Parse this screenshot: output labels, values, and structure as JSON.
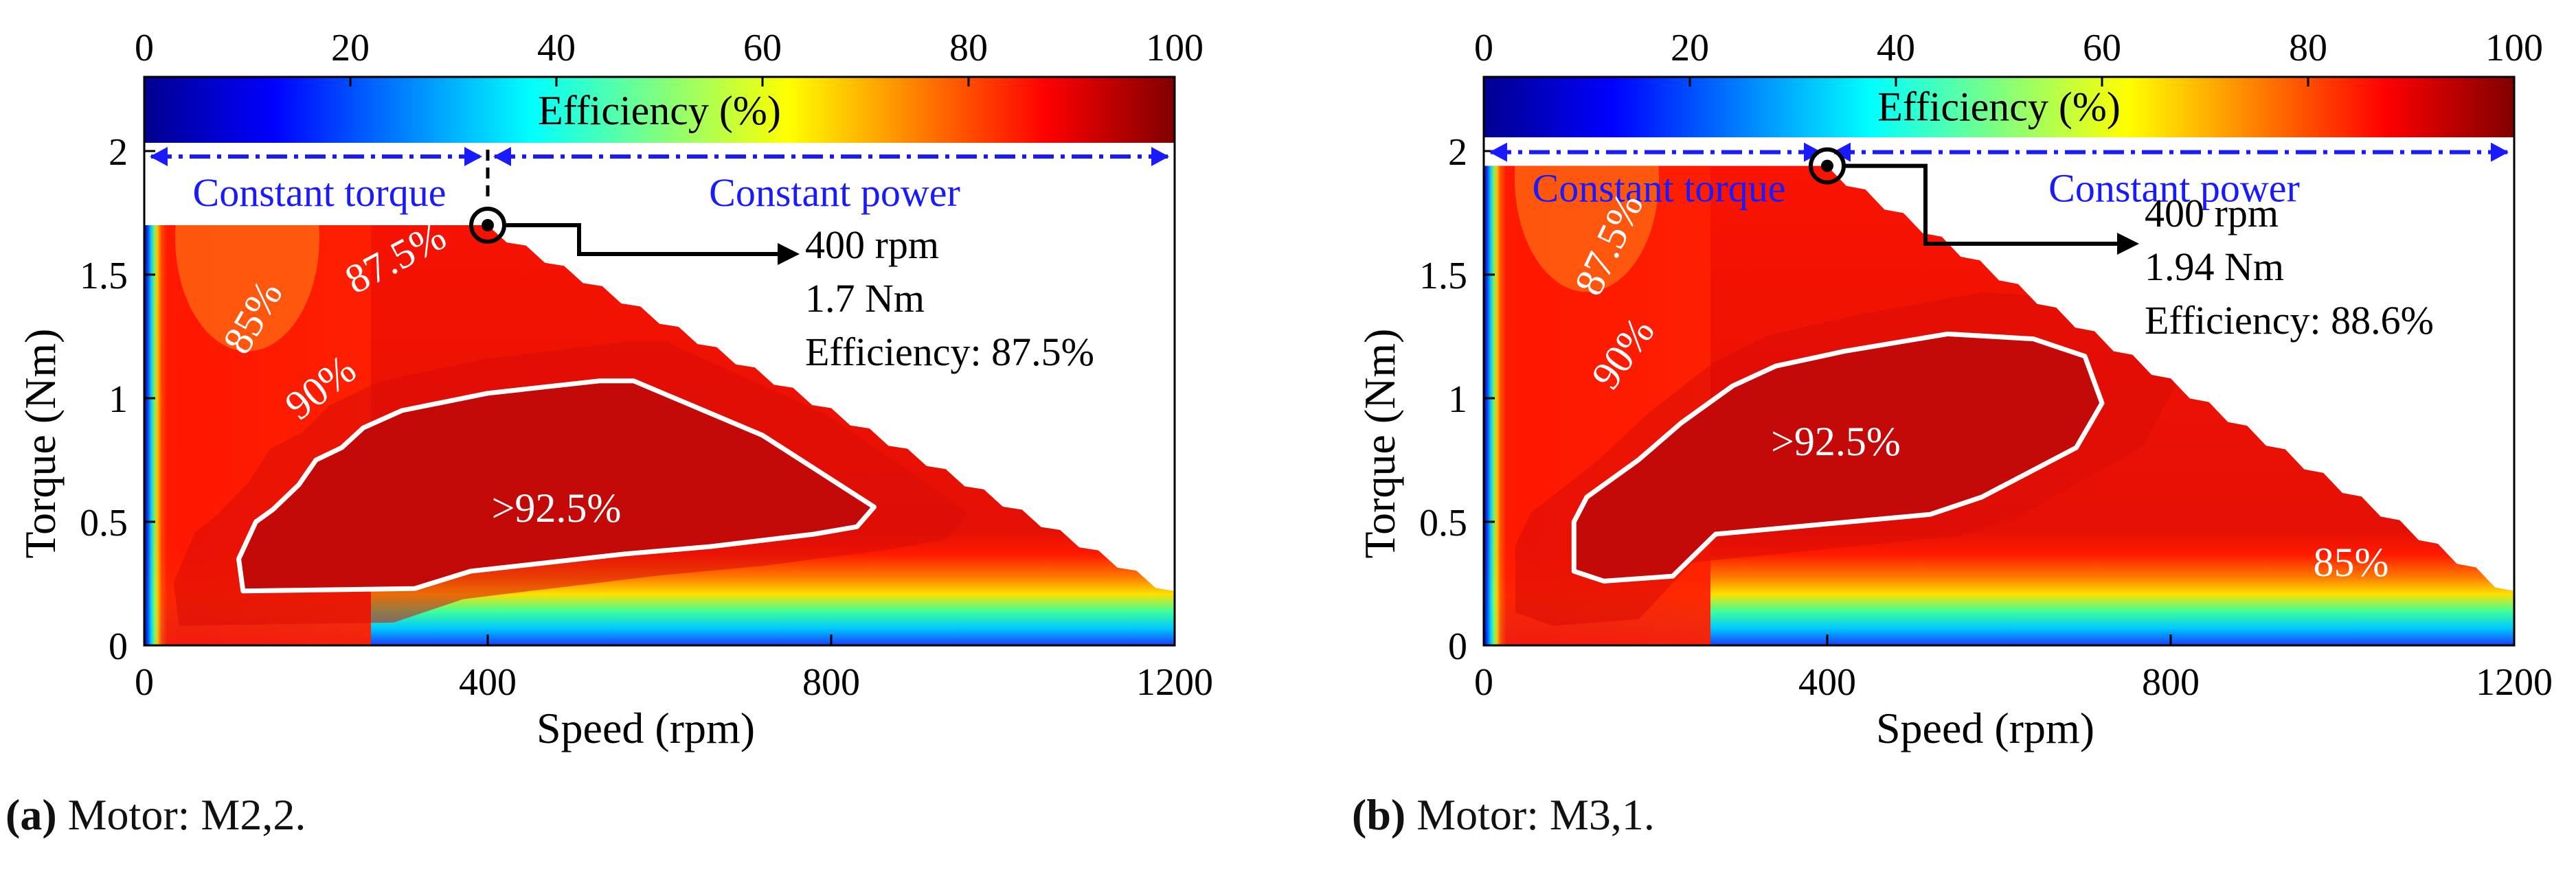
{
  "chart_data": [
    {
      "id": "a",
      "type": "heatmap",
      "xlabel": "Speed (rpm)",
      "ylabel": "Torque (Nm)",
      "xlim": [
        0,
        1200
      ],
      "ylim": [
        0,
        2.3
      ],
      "xticks": [
        0,
        400,
        800,
        1200
      ],
      "yticks": [
        0,
        0.5,
        1,
        1.5,
        2
      ],
      "colorbar": {
        "label": "Efficiency (%)",
        "range": [
          0,
          100
        ],
        "ticks": [
          0,
          20,
          40,
          60,
          80,
          100
        ]
      },
      "envelope": {
        "corner_speed": 400,
        "rated_torque": 1.7,
        "max_speed": 1200,
        "torque_at_max_speed": 0.22
      },
      "region_labels": {
        "constant_torque": "Constant torque",
        "constant_power": "Constant power"
      },
      "operating_point": {
        "speed": 400,
        "torque": 1.7,
        "annotation": [
          "400 rpm",
          "1.7 Nm",
          "Efficiency: 87.5%"
        ]
      },
      "contour_labels": [
        {
          "text": "85%",
          "speed": 140,
          "torque": 1.3,
          "rotate": -60
        },
        {
          "text": "87.5%",
          "speed": 300,
          "torque": 1.52,
          "rotate": -28
        },
        {
          "text": "90%",
          "speed": 215,
          "torque": 1.0,
          "rotate": -38
        },
        {
          "text": ">92.5%",
          "speed": 480,
          "torque": 0.5,
          "rotate": 0
        }
      ],
      "peak_contour": [
        [
          115,
          0.22
        ],
        [
          110,
          0.35
        ],
        [
          130,
          0.5
        ],
        [
          150,
          0.55
        ],
        [
          180,
          0.65
        ],
        [
          200,
          0.75
        ],
        [
          230,
          0.8
        ],
        [
          255,
          0.88
        ],
        [
          300,
          0.95
        ],
        [
          400,
          1.02
        ],
        [
          530,
          1.07
        ],
        [
          570,
          1.07
        ],
        [
          720,
          0.85
        ],
        [
          850,
          0.56
        ],
        [
          830,
          0.48
        ],
        [
          780,
          0.45
        ],
        [
          660,
          0.4
        ],
        [
          560,
          0.37
        ],
        [
          380,
          0.3
        ],
        [
          315,
          0.23
        ]
      ]
    },
    {
      "id": "b",
      "type": "heatmap",
      "xlabel": "Speed (rpm)",
      "ylabel": "Torque (Nm)",
      "xlim": [
        0,
        1200
      ],
      "ylim": [
        0,
        2.3
      ],
      "xticks": [
        0,
        400,
        800,
        1200
      ],
      "yticks": [
        0,
        0.5,
        1,
        1.5,
        2
      ],
      "colorbar": {
        "label": "Efficiency (%)",
        "range": [
          0,
          100
        ],
        "ticks": [
          0,
          20,
          40,
          60,
          80,
          100
        ]
      },
      "envelope": {
        "corner_speed": 400,
        "rated_torque": 1.94,
        "max_speed": 1200,
        "torque_at_max_speed": 0.22
      },
      "region_labels": {
        "constant_torque": "Constant torque",
        "constant_power": "Constant power"
      },
      "operating_point": {
        "speed": 400,
        "torque": 1.94,
        "annotation": [
          "400 rpm",
          "1.94 Nm",
          "Efficiency: 88.6%"
        ]
      },
      "contour_labels": [
        {
          "text": "87.5%",
          "speed": 160,
          "torque": 1.6,
          "rotate": -65
        },
        {
          "text": "90%",
          "speed": 175,
          "torque": 1.15,
          "rotate": -55
        },
        {
          "text": ">92.5%",
          "speed": 410,
          "torque": 0.77,
          "rotate": 0
        },
        {
          "text": "85%",
          "speed": 1010,
          "torque": 0.28,
          "rotate": 0
        }
      ],
      "peak_contour": [
        [
          105,
          0.3
        ],
        [
          105,
          0.5
        ],
        [
          120,
          0.6
        ],
        [
          180,
          0.75
        ],
        [
          230,
          0.9
        ],
        [
          290,
          1.05
        ],
        [
          340,
          1.13
        ],
        [
          420,
          1.19
        ],
        [
          540,
          1.26
        ],
        [
          640,
          1.24
        ],
        [
          700,
          1.17
        ],
        [
          720,
          0.98
        ],
        [
          690,
          0.8
        ],
        [
          580,
          0.6
        ],
        [
          520,
          0.53
        ],
        [
          270,
          0.45
        ],
        [
          220,
          0.28
        ],
        [
          140,
          0.26
        ]
      ]
    }
  ],
  "captions": [
    {
      "letter": "(a)",
      "text": " Motor: M2,2."
    },
    {
      "letter": "(b)",
      "text": " Motor: M3,1."
    }
  ]
}
